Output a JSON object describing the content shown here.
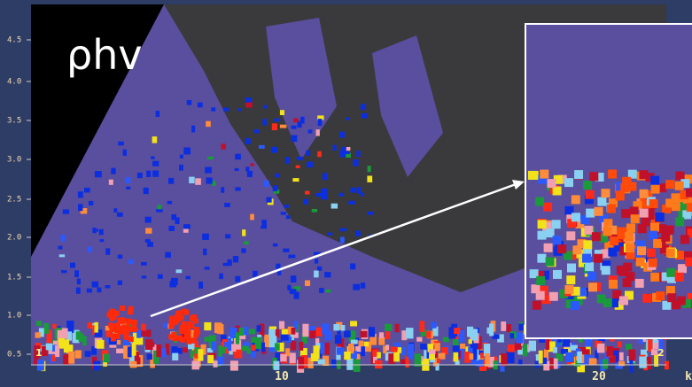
{
  "title": "ρhv",
  "y_axis": {
    "tick_labels": [
      "4.5",
      "4.0",
      "3.5",
      "3.0",
      "2.5",
      "2.0",
      "1.5",
      "1.0",
      "0.5"
    ]
  },
  "x_axis": {
    "tick_labels": [
      "10",
      "20"
    ],
    "unit": "k"
  },
  "markers": [
    "1",
    "2"
  ]
}
